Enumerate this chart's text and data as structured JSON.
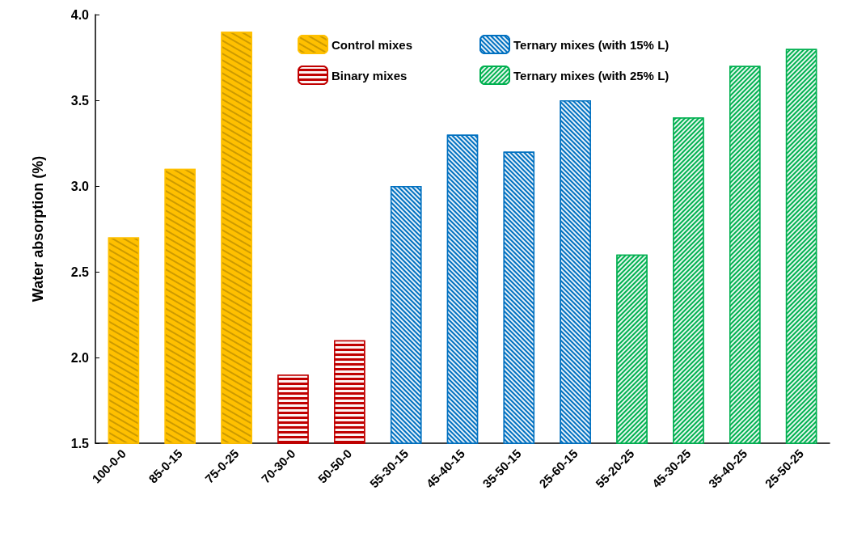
{
  "chart_data": {
    "type": "bar",
    "ylabel": "Water absorption (%)",
    "categories": [
      "100-0-0",
      "85-0-15",
      "75-0-25",
      "70-30-0",
      "50-50-0",
      "55-30-15",
      "45-40-15",
      "35-50-15",
      "25-60-15",
      "55-20-25",
      "45-30-25",
      "35-40-25",
      "25-50-25"
    ],
    "series": [
      {
        "name": "Control mixes",
        "color": "#ffc000",
        "values": [
          2.7,
          3.1,
          3.9,
          null,
          null,
          null,
          null,
          null,
          null,
          null,
          null,
          null,
          null
        ]
      },
      {
        "name": "Binary mixes",
        "color": "#c00000",
        "values": [
          null,
          null,
          null,
          1.9,
          2.1,
          null,
          null,
          null,
          null,
          null,
          null,
          null,
          null
        ]
      },
      {
        "name": "Ternary mixes (with 15% L)",
        "color": "#0070c0",
        "values": [
          null,
          null,
          null,
          null,
          null,
          3.0,
          3.3,
          3.2,
          3.5,
          null,
          null,
          null,
          null
        ]
      },
      {
        "name": "Ternary mixes (with 25% L)",
        "color": "#00b050",
        "values": [
          null,
          null,
          null,
          null,
          null,
          null,
          null,
          null,
          null,
          2.6,
          3.4,
          3.7,
          3.8
        ]
      }
    ],
    "ylim": [
      1.5,
      4.0
    ],
    "yticks": [
      1.5,
      {
        "value": 2,
        "label": "2.0"
      },
      2.5,
      {
        "value": 3,
        "label": "3.0"
      },
      3.5,
      {
        "value": 4,
        "label": "4.0"
      }
    ],
    "grid": false,
    "legend": "top"
  }
}
